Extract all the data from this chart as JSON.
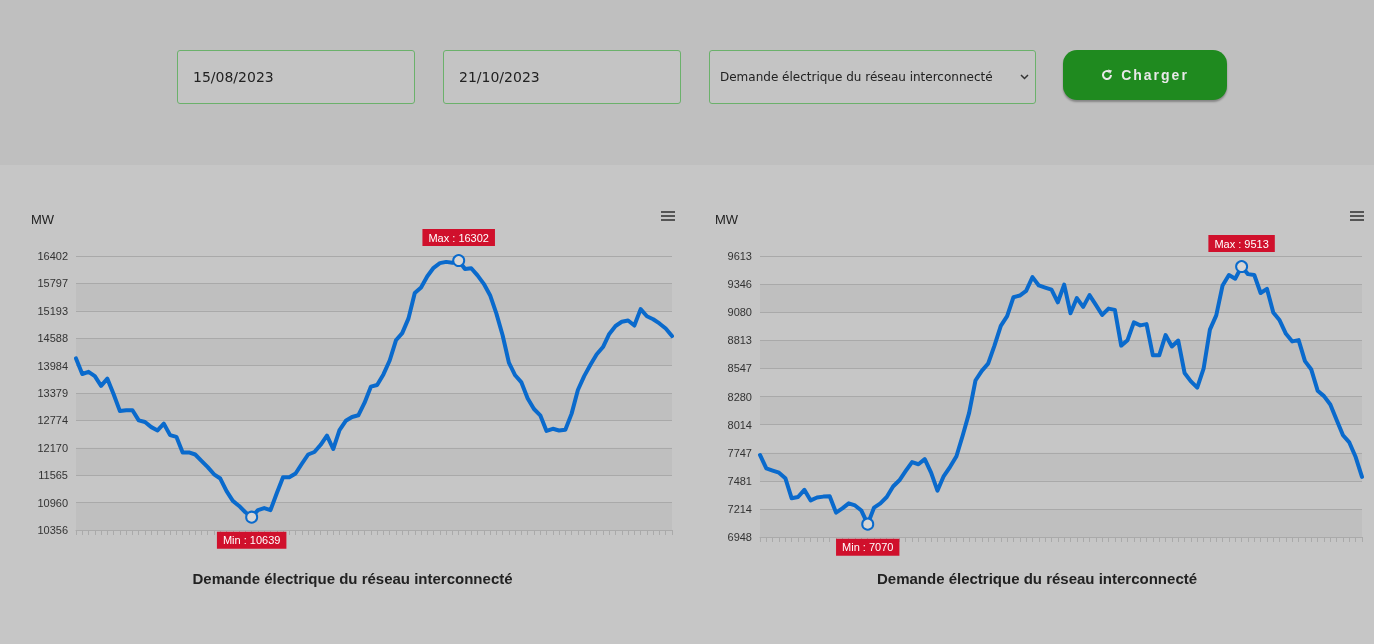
{
  "chart_data": [
    {
      "type": "other",
      "annotations": [
        "15/08/2023",
        "21/10/2023",
        "Demande électrique du réseau interconnecté",
        "Charger"
      ]
    },
    {
      "type": "line",
      "title": "Demande électrique du réseau interconnecté",
      "ylabel": "MW",
      "categories": [
        null,
        null,
        null,
        null,
        null,
        null,
        null,
        null,
        null,
        null,
        null,
        null,
        null,
        null,
        null,
        null,
        null,
        null,
        null,
        null,
        null,
        null,
        null,
        null,
        null,
        null,
        null,
        null,
        null,
        null,
        null,
        null,
        null,
        null,
        null,
        null,
        null,
        null,
        null,
        null,
        null,
        null,
        null,
        null,
        null,
        null,
        null,
        null,
        null,
        null,
        null,
        null,
        null,
        null,
        null,
        null,
        null,
        null,
        null,
        null,
        null,
        null,
        null,
        null,
        null,
        null,
        null,
        null,
        null,
        null,
        null,
        null,
        null,
        null,
        null,
        null,
        null,
        null,
        null,
        null,
        null,
        null,
        null,
        null,
        null,
        null,
        null,
        null,
        null,
        null,
        null,
        null,
        null,
        null,
        null,
        null
      ],
      "series": [
        {
          "color": "#0a6acc",
          "values": [
            14142,
            13798,
            13845,
            13751,
            13537,
            13695,
            13352,
            12980,
            12998,
            12998,
            12775,
            12738,
            12626,
            12552,
            12701,
            12450,
            12412,
            12068,
            12068,
            12022,
            11882,
            11743,
            11585,
            11492,
            11213,
            10999,
            10887,
            10747,
            10639,
            10794,
            10840,
            10794,
            11166,
            11520,
            11520,
            11603,
            11817,
            12022,
            12077,
            12236,
            12440,
            12143,
            12561,
            12766,
            12850,
            12887,
            13166,
            13519,
            13556,
            13789,
            14096,
            14542,
            14700,
            15026,
            15584,
            15705,
            15956,
            16142,
            16244,
            16272,
            16253,
            16302,
            16114,
            16133,
            15974,
            15788,
            15537,
            15137,
            14654,
            14049,
            13770,
            13612,
            13259,
            13026,
            12887,
            12542,
            12589,
            12552,
            12570,
            12924,
            13445,
            13751,
            14003,
            14235,
            14393,
            14682,
            14858,
            14951,
            14979,
            14867,
            15230,
            15072,
            15007,
            14914,
            14802,
            14635
          ]
        }
      ],
      "ylim": [
        10356,
        16402
      ],
      "yticks": [
        10356,
        10960,
        11565,
        12170,
        12774,
        13379,
        13984,
        14588,
        15193,
        15797,
        16402
      ],
      "grid": "y",
      "line_style": "solid",
      "tick_labels": "y",
      "annotations": [
        {
          "text": "Min : 10639",
          "y": 10639
        },
        {
          "text": "Max : 16302",
          "y": 16302
        }
      ]
    },
    {
      "type": "line",
      "title": "Demande électrique du réseau interconnecté",
      "ylabel": "MW",
      "categories": [
        null,
        null,
        null,
        null,
        null,
        null,
        null,
        null,
        null,
        null,
        null,
        null,
        null,
        null,
        null,
        null,
        null,
        null,
        null,
        null,
        null,
        null,
        null,
        null,
        null,
        null,
        null,
        null,
        null,
        null,
        null,
        null,
        null,
        null,
        null,
        null,
        null,
        null,
        null,
        null,
        null,
        null,
        null,
        null,
        null,
        null,
        null,
        null,
        null,
        null,
        null,
        null,
        null,
        null,
        null,
        null,
        null,
        null,
        null,
        null,
        null,
        null,
        null,
        null,
        null,
        null,
        null,
        null,
        null,
        null,
        null,
        null,
        null,
        null,
        null,
        null,
        null,
        null,
        null,
        null,
        null,
        null,
        null,
        null,
        null,
        null,
        null,
        null,
        null,
        null,
        null,
        null,
        null,
        null,
        null,
        null
      ],
      "series": [
        {
          "color": "#0a6acc",
          "values": [
            7726,
            7598,
            7578,
            7558,
            7506,
            7315,
            7327,
            7395,
            7295,
            7323,
            7331,
            7335,
            7179,
            7219,
            7267,
            7247,
            7199,
            7070,
            7227,
            7267,
            7327,
            7427,
            7486,
            7574,
            7658,
            7638,
            7686,
            7558,
            7387,
            7526,
            7614,
            7714,
            7913,
            8125,
            8432,
            8524,
            8592,
            8763,
            8951,
            9042,
            9222,
            9238,
            9282,
            9413,
            9334,
            9314,
            9294,
            9174,
            9342,
            9070,
            9214,
            9130,
            9242,
            9150,
            9054,
            9114,
            9102,
            8763,
            8815,
            8983,
            8955,
            8967,
            8671,
            8671,
            8863,
            8755,
            8811,
            8504,
            8424,
            8364,
            8544,
            8915,
            9050,
            9334,
            9433,
            9398,
            9513,
            9441,
            9433,
            9262,
            9302,
            9078,
            9003,
            8875,
            8803,
            8815,
            8616,
            8536,
            8336,
            8284,
            8205,
            8057,
            7913,
            7845,
            7706,
            7518
          ]
        }
      ],
      "ylim": [
        6948,
        9613
      ],
      "yticks": [
        6948,
        7214,
        7481,
        7747,
        8014,
        8280,
        8547,
        8813,
        9080,
        9346,
        9613
      ],
      "grid": "y",
      "line_style": "solid",
      "tick_labels": "y",
      "annotations": [
        {
          "text": "Min : 7070",
          "y": 7070
        },
        {
          "text": "Max : 9513",
          "y": 9513
        }
      ]
    }
  ]
}
